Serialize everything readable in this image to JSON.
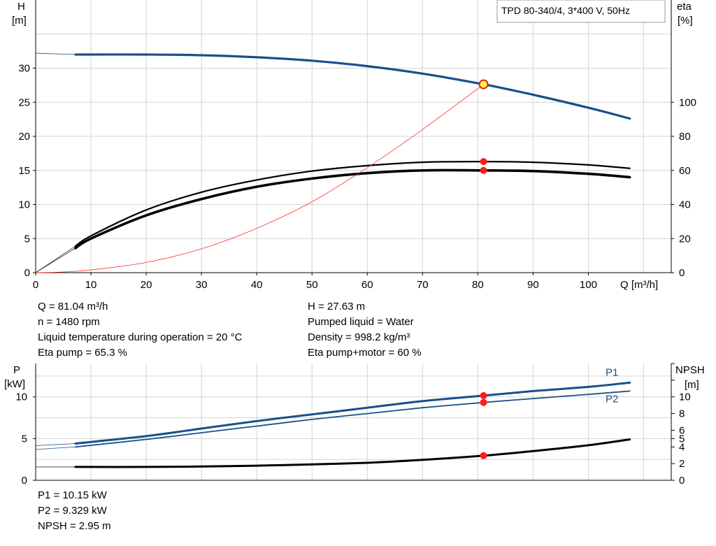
{
  "chart_data": [
    {
      "type": "line",
      "title": "TPD 80-340/4, 3*400 V, 50Hz",
      "xlabel": "Q [m³/h]",
      "ylabel_left": [
        "H",
        "[m]"
      ],
      "ylabel_right": [
        "eta",
        "[%]"
      ],
      "xlim": [
        0,
        115
      ],
      "ylim_left": [
        0,
        40
      ],
      "ylim_right": [
        0,
        160
      ],
      "x_ticks": [
        0,
        10,
        20,
        30,
        40,
        50,
        60,
        70,
        80,
        90,
        100
      ],
      "y_ticks_left": [
        0,
        5,
        10,
        15,
        20,
        25,
        30
      ],
      "y_ticks_right": [
        0,
        20,
        40,
        60,
        80,
        100
      ],
      "grid": true,
      "series": [
        {
          "name": "H",
          "axis": "left",
          "color": "#1a4f8a",
          "x": [
            7.2,
            20,
            30,
            40,
            50,
            60,
            70,
            81.04,
            90,
            100,
            107.5
          ],
          "y": [
            32.0,
            32.0,
            31.9,
            31.6,
            31.1,
            30.3,
            29.2,
            27.63,
            26.1,
            24.2,
            22.6
          ]
        },
        {
          "name": "",
          "axis": "left",
          "color": "#000000",
          "x": [
            7.2,
            10,
            20,
            30,
            40,
            50,
            60,
            70,
            81.04,
            90,
            100,
            107.5
          ],
          "y": [
            3.9,
            5.4,
            9.2,
            11.8,
            13.6,
            14.9,
            15.7,
            16.2,
            16.3,
            16.2,
            15.8,
            15.3
          ]
        },
        {
          "name": "",
          "axis": "left",
          "color": "#000000",
          "x": [
            7.2,
            10,
            20,
            30,
            40,
            50,
            60,
            70,
            81.04,
            90,
            100,
            107.5
          ],
          "y": [
            3.6,
            5.0,
            8.4,
            10.8,
            12.6,
            13.8,
            14.6,
            15.0,
            15.0,
            14.9,
            14.5,
            14.0
          ]
        },
        {
          "name": "",
          "axis": "left",
          "color": "#ff3030",
          "x": [
            0,
            5,
            10,
            20,
            30,
            40,
            50,
            60,
            70,
            81.04
          ],
          "y": [
            0,
            0.1,
            0.4,
            1.5,
            3.5,
            6.5,
            10.4,
            15.4,
            21.0,
            27.63
          ]
        }
      ],
      "operating_point": {
        "x": 81.04,
        "y_H": 27.63,
        "eta_pump": 65.3,
        "eta_total": 60
      }
    },
    {
      "type": "line",
      "ylabel_left": [
        "P",
        "[kW]"
      ],
      "ylabel_right": [
        "NPSH",
        "[m]"
      ],
      "xlim": [
        0,
        115
      ],
      "ylim_left": [
        0,
        14
      ],
      "ylim_right": [
        0,
        14
      ],
      "y_ticks_left": [
        0,
        5,
        10
      ],
      "y_ticks_right": [
        0,
        2,
        4,
        5,
        6,
        8,
        10
      ],
      "grid": true,
      "series": [
        {
          "name": "P1",
          "axis": "left",
          "color": "#1a4f8a",
          "x": [
            7.2,
            20,
            30,
            40,
            50,
            60,
            70,
            81.04,
            90,
            100,
            107.5
          ],
          "y": [
            4.4,
            5.3,
            6.2,
            7.1,
            7.9,
            8.7,
            9.5,
            10.15,
            10.7,
            11.2,
            11.7
          ]
        },
        {
          "name": "P2",
          "axis": "left",
          "color": "#1a4f8a",
          "x": [
            7.2,
            20,
            30,
            40,
            50,
            60,
            70,
            81.04,
            90,
            100,
            107.5
          ],
          "y": [
            4.0,
            4.9,
            5.7,
            6.5,
            7.3,
            8.0,
            8.7,
            9.329,
            9.8,
            10.3,
            10.7
          ]
        },
        {
          "name": "NPSH",
          "axis": "right",
          "color": "#000000",
          "x": [
            7.2,
            20,
            30,
            40,
            50,
            60,
            70,
            81.04,
            90,
            100,
            107.5
          ],
          "y": [
            1.6,
            1.6,
            1.65,
            1.75,
            1.9,
            2.1,
            2.45,
            2.95,
            3.5,
            4.2,
            4.9
          ]
        }
      ]
    }
  ],
  "info_top_left": [
    "Q = 81.04 m³/h",
    "n = 1480 rpm",
    "Liquid temperature during operation = 20 °C",
    "Eta pump = 65.3 %"
  ],
  "info_top_right": [
    "H = 27.63 m",
    "Pumped liquid = Water",
    "Density = 998.2 kg/m³",
    "Eta pump+motor = 60 %"
  ],
  "info_bottom": [
    "P1 = 10.15 kW",
    "P2 = 9.329 kW",
    "NPSH = 2.95 m"
  ]
}
